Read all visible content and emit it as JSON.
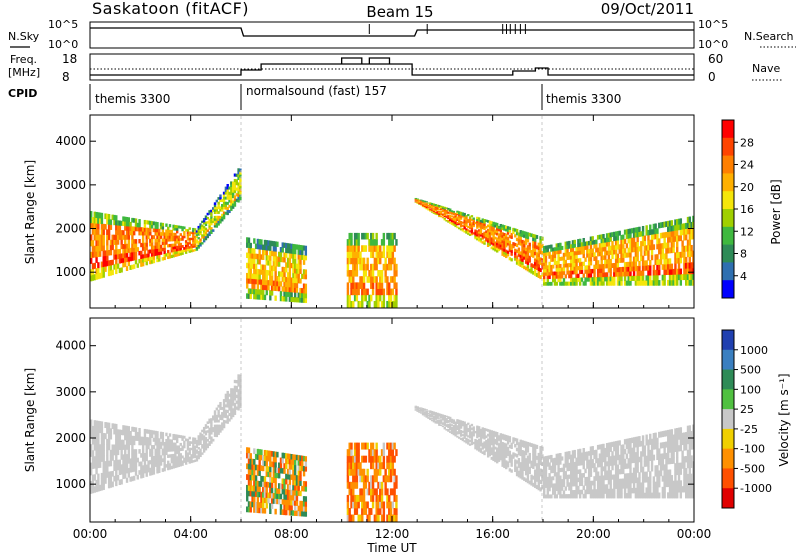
{
  "header": {
    "radar": "Saskatoon (fitACF)",
    "beam": "Beam 15",
    "date": "09/Oct/2011"
  },
  "sky_panel": {
    "left_label": "N.Sky",
    "right_label": "N.Search",
    "left_ticks": [
      "10^5",
      "10^0"
    ],
    "right_ticks": [
      "10^5",
      "10^0"
    ]
  },
  "freq_panel": {
    "left_label_1": "Freq.",
    "left_label_2": "[MHz]",
    "right_label": "Nave",
    "left_ticks": [
      "18",
      "8"
    ],
    "right_ticks": [
      "60",
      "0"
    ]
  },
  "cpid": {
    "label": "CPID",
    "segments": [
      {
        "text": "themis 3300",
        "start_hour": 0
      },
      {
        "text": "normalsound (fast) 157",
        "start_hour": 6
      },
      {
        "text": "themis 3300",
        "start_hour": 18
      }
    ]
  },
  "x_axis": {
    "label": "Time UT",
    "ticks": [
      "00:00",
      "04:00",
      "08:00",
      "12:00",
      "16:00",
      "20:00",
      "00:00"
    ],
    "range_hours": [
      0,
      24
    ]
  },
  "power_panel": {
    "ylabel": "Slant Range [km]",
    "yticks": [
      "4000",
      "3000",
      "2000",
      "1000"
    ],
    "cbar_label": "Power [dB]",
    "cbar_ticks": [
      "28",
      "24",
      "20",
      "16",
      "12",
      "8",
      "4"
    ],
    "cbar_colors": [
      "#ff0000",
      "#ff4400",
      "#ff7f00",
      "#ffb000",
      "#f5e60a",
      "#a0d000",
      "#3fb83f",
      "#2e8b57",
      "#2f6fb0",
      "#0000ff"
    ]
  },
  "velocity_panel": {
    "ylabel": "Slant Range [km]",
    "yticks": [
      "4000",
      "3000",
      "2000",
      "1000"
    ],
    "cbar_label": "Velocity [m s⁻¹]",
    "cbar_ticks": [
      "1000",
      "500",
      "100",
      "25",
      "-25",
      "-100",
      "-500",
      "-1000"
    ],
    "cbar_colors": [
      "#2040b0",
      "#3a7fc0",
      "#2e8b57",
      "#50c040",
      "#c8c8c8",
      "#f0d000",
      "#ff9000",
      "#ff5000",
      "#e00000"
    ]
  },
  "chart_data": {
    "type": "heatmap",
    "x_unit": "hours UT",
    "xlim": [
      0,
      24
    ],
    "ylim_km": [
      180,
      4600
    ],
    "power_db_range": [
      0,
      30
    ],
    "velocity_range_ms": [
      -1000,
      1000
    ],
    "scatter_bands": [
      {
        "x0": 0.0,
        "x1": 4.2,
        "y_lower_km": [
          800,
          1500
        ],
        "y_upper_km": [
          2400,
          2000
        ],
        "power_db": 22,
        "velocity_ms": 0
      },
      {
        "x0": 4.2,
        "x1": 6.0,
        "y_lower_km": [
          1500,
          2700
        ],
        "y_upper_km": [
          2000,
          3500
        ],
        "power_db": 14,
        "velocity_ms": 0
      },
      {
        "x0": 6.2,
        "x1": 8.6,
        "y_lower_km": [
          400,
          300
        ],
        "y_upper_km": [
          1800,
          1600
        ],
        "power_db": 18,
        "velocity_ms": -100
      },
      {
        "x0": 10.2,
        "x1": 12.2,
        "y_lower_km": [
          200,
          200
        ],
        "y_upper_km": [
          1900,
          1900
        ],
        "power_db": 20,
        "velocity_ms": -300
      },
      {
        "x0": 12.9,
        "x1": 18.0,
        "y_lower_km": [
          2600,
          800
        ],
        "y_upper_km": [
          2700,
          1800
        ],
        "power_db": 22,
        "velocity_ms": 0
      },
      {
        "x0": 18.0,
        "x1": 24.0,
        "y_lower_km": [
          700,
          700
        ],
        "y_upper_km": [
          1600,
          2300
        ],
        "power_db": 20,
        "velocity_ms": 0
      }
    ]
  }
}
